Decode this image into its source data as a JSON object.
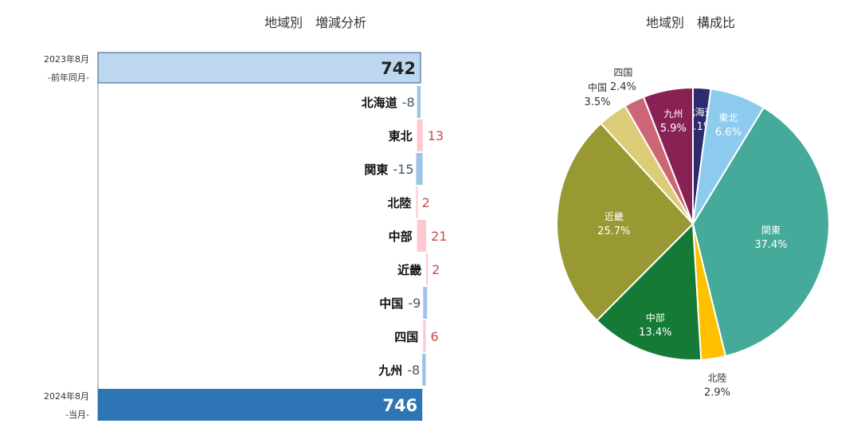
{
  "chart_data": [
    {
      "type": "bar",
      "title": "地域別　増減分析",
      "start": {
        "label_line1": "2023年8月",
        "label_line2": "-前年同月-",
        "value": 742
      },
      "end": {
        "label_line1": "2024年8月",
        "label_line2": "-当月-",
        "value": 746
      },
      "categories": [
        "北海道",
        "東北",
        "関東",
        "北陸",
        "中部",
        "近畿",
        "中国",
        "四国",
        "九州"
      ],
      "values": [
        -8,
        13,
        -15,
        2,
        21,
        2,
        -9,
        6,
        -8
      ],
      "value_labels": [
        "-8",
        "13",
        "-15",
        "2",
        "21",
        "2",
        "-9",
        "6",
        "-8"
      ],
      "colors": {
        "start_bar": "#BDD7EE",
        "end_bar": "#2E75B6",
        "decrease": "#9DC3E6",
        "increase": "#FFC7CE",
        "decrease_text": "#44546A",
        "increase_text": "#C0504D"
      }
    },
    {
      "type": "pie",
      "title": "地域別　構成比",
      "categories": [
        "北海道",
        "東北",
        "関東",
        "北陸",
        "中部",
        "近畿",
        "中国",
        "四国",
        "九州"
      ],
      "values": [
        2.1,
        6.6,
        37.4,
        2.9,
        13.4,
        25.7,
        3.5,
        2.4,
        5.9
      ],
      "value_labels": [
        "2.1%",
        "6.6%",
        "37.4%",
        "2.9%",
        "13.4%",
        "25.7%",
        "3.5%",
        "2.4%",
        "5.9%"
      ],
      "colors": [
        "#2E2A6E",
        "#8DCBEE",
        "#45AA99",
        "#FFC000",
        "#157A35",
        "#999933",
        "#DDCC77",
        "#CC6677",
        "#882255"
      ]
    }
  ]
}
